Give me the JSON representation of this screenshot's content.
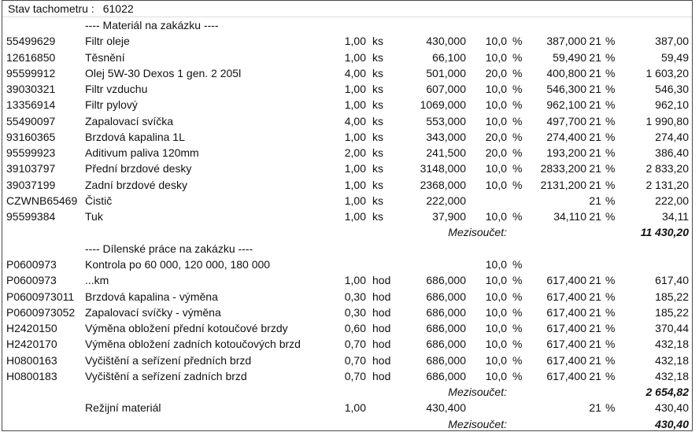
{
  "meter": {
    "label": "Stav tachometru :",
    "value": "61022"
  },
  "subtotal_label": "Mezisoučet:",
  "text_color": "#111111",
  "border_color": "#4a4a4a",
  "sections": [
    {
      "header": "---- Materiál na zakázku ----",
      "rows": [
        {
          "code": "55499629",
          "desc": "Filtr oleje",
          "qty": "1,00",
          "unit": "ks",
          "price": "430,000",
          "disc": "10,0",
          "disc_pct": "%",
          "net": "387,000",
          "vat": "21",
          "vat_pct": "%",
          "total": "387,00"
        },
        {
          "code": "12616850",
          "desc": "Těsnění",
          "qty": "1,00",
          "unit": "ks",
          "price": "66,100",
          "disc": "10,0",
          "disc_pct": "%",
          "net": "59,490",
          "vat": "21",
          "vat_pct": "%",
          "total": "59,49"
        },
        {
          "code": "95599912",
          "desc": "Olej 5W-30 Dexos 1 gen. 2 205l",
          "qty": "4,00",
          "unit": "ks",
          "price": "501,000",
          "disc": "20,0",
          "disc_pct": "%",
          "net": "400,800",
          "vat": "21",
          "vat_pct": "%",
          "total": "1 603,20"
        },
        {
          "code": "39030321",
          "desc": "Filtr vzduchu",
          "qty": "1,00",
          "unit": "ks",
          "price": "607,000",
          "disc": "10,0",
          "disc_pct": "%",
          "net": "546,300",
          "vat": "21",
          "vat_pct": "%",
          "total": "546,30"
        },
        {
          "code": "13356914",
          "desc": "Filtr pylový",
          "qty": "1,00",
          "unit": "ks",
          "price": "1069,000",
          "disc": "10,0",
          "disc_pct": "%",
          "net": "962,100",
          "vat": "21",
          "vat_pct": "%",
          "total": "962,10"
        },
        {
          "code": "55490097",
          "desc": "Zapalovací svíčka",
          "qty": "4,00",
          "unit": "ks",
          "price": "553,000",
          "disc": "10,0",
          "disc_pct": "%",
          "net": "497,700",
          "vat": "21",
          "vat_pct": "%",
          "total": "1 990,80"
        },
        {
          "code": "93160365",
          "desc": "Brzdová kapalina 1L",
          "qty": "1,00",
          "unit": "ks",
          "price": "343,000",
          "disc": "20,0",
          "disc_pct": "%",
          "net": "274,400",
          "vat": "21",
          "vat_pct": "%",
          "total": "274,40"
        },
        {
          "code": "95599923",
          "desc": "Aditivum paliva 120mm",
          "qty": "2,00",
          "unit": "ks",
          "price": "241,500",
          "disc": "20,0",
          "disc_pct": "%",
          "net": "193,200",
          "vat": "21",
          "vat_pct": "%",
          "total": "386,40"
        },
        {
          "code": "39103797",
          "desc": "Přední brzdové desky",
          "qty": "1,00",
          "unit": "ks",
          "price": "3148,000",
          "disc": "10,0",
          "disc_pct": "%",
          "net": "2833,200",
          "vat": "21",
          "vat_pct": "%",
          "total": "2 833,20"
        },
        {
          "code": "39037199",
          "desc": "Zadní brzdové desky",
          "qty": "1,00",
          "unit": "ks",
          "price": "2368,000",
          "disc": "10,0",
          "disc_pct": "%",
          "net": "2131,200",
          "vat": "21",
          "vat_pct": "%",
          "total": "2 131,20"
        },
        {
          "code": "CZWNB65469",
          "desc": "Čistič",
          "qty": "1,00",
          "unit": "ks",
          "price": "222,000",
          "disc": "",
          "disc_pct": "",
          "net": "",
          "vat": "21",
          "vat_pct": "%",
          "total": "222,00"
        },
        {
          "code": "95599384",
          "desc": "Tuk",
          "qty": "1,00",
          "unit": "ks",
          "price": "37,900",
          "disc": "10,0",
          "disc_pct": "%",
          "net": "34,110",
          "vat": "21",
          "vat_pct": "%",
          "total": "34,11"
        }
      ],
      "subtotal": {
        "label": "Mezisoučet:",
        "value": "11 430,20"
      }
    },
    {
      "header": "---- Dílenské práce na zakázku ----",
      "rows": [
        {
          "code": "P0600973",
          "desc": "Kontrola po 60 000, 120 000, 180 000",
          "qty": "",
          "unit": "",
          "price": "",
          "disc": "10,0",
          "disc_pct": "%",
          "net": "",
          "vat": "",
          "vat_pct": "",
          "total": ""
        },
        {
          "code": "P0600973",
          "desc": "...km",
          "qty": "1,00",
          "unit": "hod",
          "price": "686,000",
          "disc": "10,0",
          "disc_pct": "%",
          "net": "617,400",
          "vat": "21",
          "vat_pct": "%",
          "total": "617,40"
        },
        {
          "code": "P0600973011",
          "desc": "Brzdová kapalina - výměna",
          "qty": "0,30",
          "unit": "hod",
          "price": "686,000",
          "disc": "10,0",
          "disc_pct": "%",
          "net": "617,400",
          "vat": "21",
          "vat_pct": "%",
          "total": "185,22"
        },
        {
          "code": "P0600973052",
          "desc": "Zapalovací svíčky - výměna",
          "qty": "0,30",
          "unit": "hod",
          "price": "686,000",
          "disc": "10,0",
          "disc_pct": "%",
          "net": "617,400",
          "vat": "21",
          "vat_pct": "%",
          "total": "185,22"
        },
        {
          "code": "H2420150",
          "desc": "Výměna obložení přední kotoučové brzdy",
          "qty": "0,60",
          "unit": "hod",
          "price": "686,000",
          "disc": "10,0",
          "disc_pct": "%",
          "net": "617,400",
          "vat": "21",
          "vat_pct": "%",
          "total": "370,44"
        },
        {
          "code": "H2420170",
          "desc": "Výměna obložení zadních kotoučových brzd",
          "qty": "0,70",
          "unit": "hod",
          "price": "686,000",
          "disc": "10,0",
          "disc_pct": "%",
          "net": "617,400",
          "vat": "21",
          "vat_pct": "%",
          "total": "432,18"
        },
        {
          "code": "H0800163",
          "desc": "Vyčištění a seřízení předních brzd",
          "qty": "0,70",
          "unit": "hod",
          "price": "686,000",
          "disc": "10,0",
          "disc_pct": "%",
          "net": "617,400",
          "vat": "21",
          "vat_pct": "%",
          "total": "432,18"
        },
        {
          "code": "H0800183",
          "desc": "Vyčištění a seřízení zadních brzd",
          "qty": "0,70",
          "unit": "hod",
          "price": "686,000",
          "disc": "10,0",
          "disc_pct": "%",
          "net": "617,400",
          "vat": "21",
          "vat_pct": "%",
          "total": "432,18"
        }
      ],
      "subtotal": {
        "label": "Mezisoučet:",
        "value": "2 654,82"
      }
    },
    {
      "header": "",
      "rows": [
        {
          "code": "",
          "desc": "Režijní materiál",
          "qty": "1,00",
          "unit": "",
          "price": "430,400",
          "disc": "",
          "disc_pct": "",
          "net": "",
          "vat": "21",
          "vat_pct": "%",
          "total": "430,40"
        }
      ],
      "subtotal": {
        "label": "Mezisoučet:",
        "value": "430,40"
      }
    }
  ]
}
